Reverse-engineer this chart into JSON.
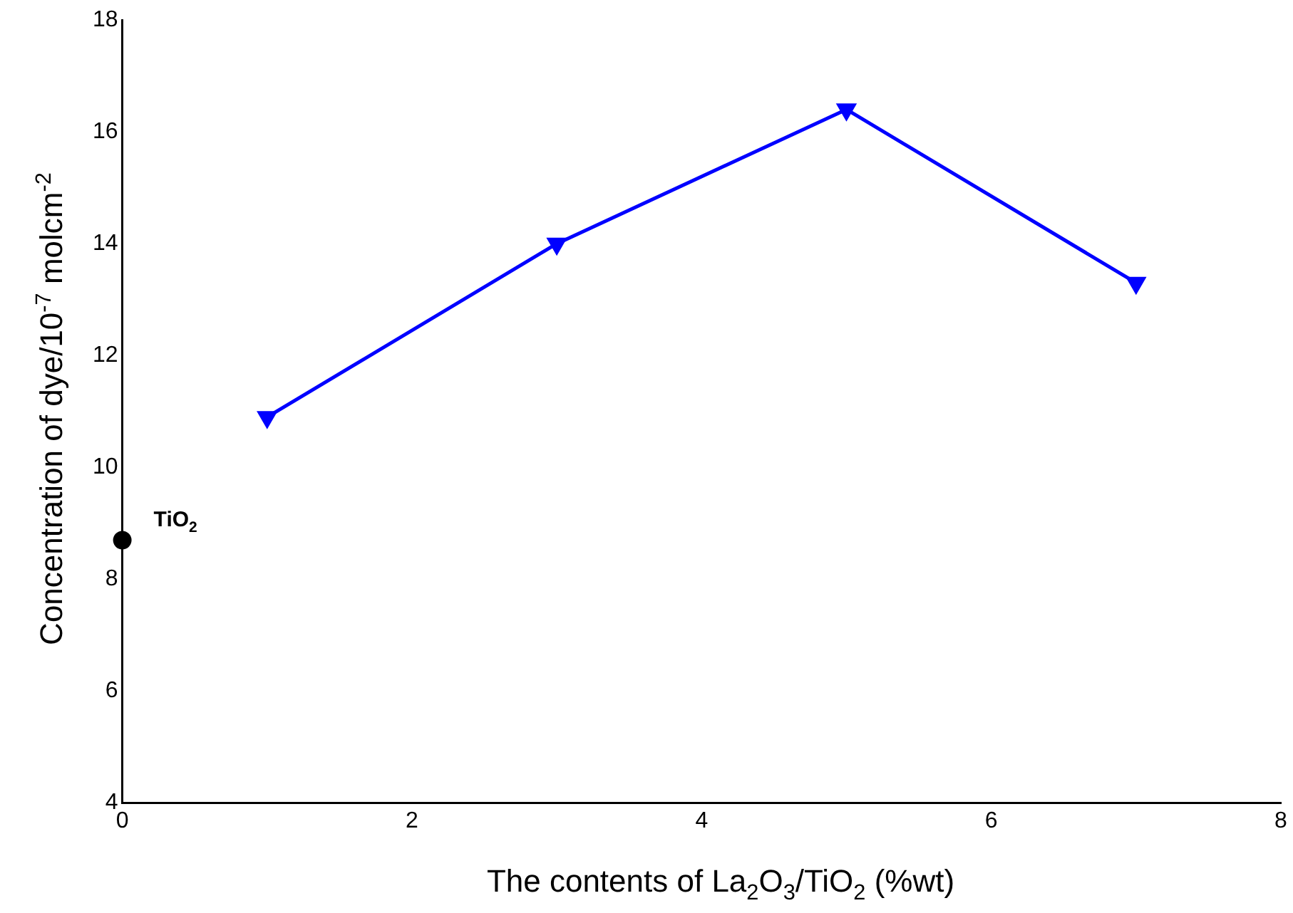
{
  "chart_data": {
    "type": "line",
    "xlabel": "The contents of La$_{2}$O$_{3}$/TiO$_{2}$ (%wt)",
    "ylabel": "Concentration of dye/10$^{-7}$ molcm$^{-2}$",
    "xlim": [
      0,
      8
    ],
    "xticks": [
      0,
      2,
      4,
      6,
      8
    ],
    "ylim": [
      4,
      18
    ],
    "yticks": [
      4,
      6,
      8,
      10,
      12,
      14,
      16,
      18
    ],
    "grid": false,
    "legend": false,
    "series": [
      {
        "type": "line",
        "color": "#0000ff",
        "marker": "triangle",
        "line_style": "solid",
        "x": [
          1,
          3,
          5,
          7
        ],
        "values": [
          10.9,
          14.0,
          16.4,
          13.3
        ]
      },
      {
        "type": "scatter",
        "color": "#000000",
        "marker": "circle",
        "x": [
          0
        ],
        "values": [
          8.7
        ]
      }
    ],
    "annotations": [
      {
        "text": "TiO$_{2}$",
        "x": 0,
        "y": 8.7
      }
    ]
  }
}
